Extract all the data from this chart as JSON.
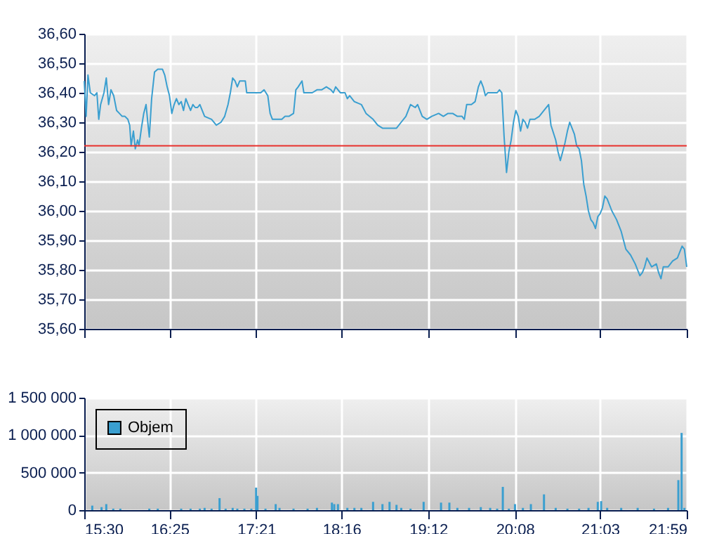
{
  "chart_data": [
    {
      "type": "line",
      "x": [
        15.5,
        15.52,
        15.54,
        15.565,
        15.611,
        15.636,
        15.656,
        15.676,
        15.712,
        15.737,
        15.762,
        15.787,
        15.817,
        15.848,
        15.878,
        15.908,
        15.938,
        15.969,
        15.989,
        16.004,
        16.029,
        16.049,
        16.074,
        16.089,
        16.115,
        16.14,
        16.165,
        16.19,
        16.2,
        16.225,
        16.256,
        16.291,
        16.316,
        16.341,
        16.366,
        16.392,
        16.417,
        16.442,
        16.467,
        16.492,
        16.518,
        16.543,
        16.568,
        16.593,
        16.618,
        16.644,
        16.669,
        16.694,
        16.719,
        16.744,
        16.795,
        16.87,
        16.921,
        16.971,
        17.011,
        17.047,
        17.072,
        17.097,
        17.122,
        17.147,
        17.173,
        17.233,
        17.248,
        17.299,
        17.349,
        17.399,
        17.435,
        17.475,
        17.5,
        17.525,
        17.576,
        17.626,
        17.661,
        17.702,
        17.752,
        17.777,
        17.802,
        17.843,
        17.863,
        17.903,
        17.953,
        18.004,
        18.054,
        18.105,
        18.155,
        18.18,
        18.205,
        18.256,
        18.306,
        18.331,
        18.356,
        18.406,
        18.482,
        18.532,
        18.608,
        18.658,
        18.709,
        18.759,
        18.809,
        18.86,
        18.91,
        18.961,
        19.011,
        19.061,
        19.087,
        19.137,
        19.187,
        19.238,
        19.313,
        19.364,
        19.414,
        19.464,
        19.515,
        19.565,
        19.59,
        19.615,
        19.666,
        19.706,
        19.741,
        19.767,
        19.792,
        19.817,
        19.842,
        19.892,
        19.943,
        19.968,
        19.993,
        20.018,
        20.044,
        20.069,
        20.094,
        20.119,
        20.144,
        20.17,
        20.195,
        20.22,
        20.245,
        20.27,
        20.296,
        20.346,
        20.396,
        20.447,
        20.497,
        20.522,
        20.573,
        20.598,
        20.623,
        20.648,
        20.673,
        20.699,
        20.724,
        20.749,
        20.774,
        20.799,
        20.825,
        20.85,
        20.875,
        20.9,
        20.925,
        20.951,
        20.976,
        21.001,
        21.026,
        21.051,
        21.076,
        21.102,
        21.127,
        21.177,
        21.228,
        21.278,
        21.328,
        21.379,
        21.429,
        21.454,
        21.479,
        21.505,
        21.53,
        21.555,
        21.605,
        21.656,
        21.681,
        21.706,
        21.731,
        21.782,
        21.832,
        21.883,
        21.933,
        21.958,
        21.983
      ],
      "series": [
        {
          "color": "#3a9fd0",
          "values": [
            36.44,
            36.32,
            36.46,
            36.4,
            36.39,
            36.4,
            36.31,
            36.36,
            36.4,
            36.45,
            36.36,
            36.41,
            36.39,
            36.34,
            36.33,
            36.32,
            36.32,
            36.31,
            36.29,
            36.22,
            36.27,
            36.21,
            36.24,
            36.22,
            36.28,
            36.33,
            36.36,
            36.28,
            36.25,
            36.38,
            36.47,
            36.48,
            36.48,
            36.48,
            36.46,
            36.42,
            36.39,
            36.33,
            36.36,
            36.38,
            36.36,
            36.37,
            36.34,
            36.38,
            36.36,
            36.34,
            36.36,
            36.35,
            36.35,
            36.36,
            36.32,
            36.31,
            36.29,
            36.3,
            36.32,
            36.36,
            36.4,
            36.45,
            36.44,
            36.42,
            36.44,
            36.44,
            36.4,
            36.4,
            36.4,
            36.4,
            36.41,
            36.39,
            36.33,
            36.31,
            36.31,
            36.31,
            36.32,
            36.32,
            36.33,
            36.41,
            36.42,
            36.44,
            36.4,
            36.4,
            36.4,
            36.41,
            36.41,
            36.42,
            36.41,
            36.4,
            36.42,
            36.4,
            36.4,
            36.38,
            36.39,
            36.37,
            36.36,
            36.33,
            36.31,
            36.29,
            36.28,
            36.28,
            36.28,
            36.28,
            36.3,
            36.32,
            36.36,
            36.35,
            36.36,
            36.32,
            36.31,
            36.32,
            36.33,
            36.32,
            36.33,
            36.33,
            36.32,
            36.32,
            36.31,
            36.36,
            36.36,
            36.37,
            36.42,
            36.44,
            36.42,
            36.39,
            36.4,
            36.4,
            36.4,
            36.41,
            36.4,
            36.25,
            36.13,
            36.2,
            36.24,
            36.3,
            36.34,
            36.32,
            36.27,
            36.31,
            36.3,
            36.28,
            36.31,
            36.31,
            36.32,
            36.34,
            36.36,
            36.29,
            36.24,
            36.2,
            36.17,
            36.2,
            36.23,
            36.27,
            36.3,
            36.28,
            36.26,
            36.22,
            36.21,
            36.17,
            36.09,
            36.05,
            36.0,
            35.97,
            35.96,
            35.94,
            35.98,
            35.99,
            36.01,
            36.05,
            36.04,
            36.0,
            35.97,
            35.93,
            35.87,
            35.85,
            35.82,
            35.8,
            35.78,
            35.79,
            35.81,
            35.84,
            35.81,
            35.82,
            35.79,
            35.77,
            35.81,
            35.81,
            35.83,
            35.84,
            35.88,
            35.87,
            35.81
          ]
        }
      ],
      "xlim": [
        15.5,
        21.983
      ],
      "xticks": [
        {
          "value": 15.5,
          "label": null
        },
        {
          "value": 16.417,
          "label": null
        },
        {
          "value": 17.35,
          "label": null
        },
        {
          "value": 18.267,
          "label": null
        },
        {
          "value": 19.2,
          "label": null
        },
        {
          "value": 20.133,
          "label": null
        },
        {
          "value": 21.05,
          "label": null
        },
        {
          "value": 21.983,
          "label": null
        }
      ],
      "ylim": [
        35.6,
        36.6
      ],
      "yticks": [
        {
          "value": 35.6,
          "label": "35,60"
        },
        {
          "value": 35.7,
          "label": "35,70"
        },
        {
          "value": 35.8,
          "label": "35,80"
        },
        {
          "value": 35.9,
          "label": "35,90"
        },
        {
          "value": 36.0,
          "label": "36,00"
        },
        {
          "value": 36.1,
          "label": "36,10"
        },
        {
          "value": 36.2,
          "label": "36,20"
        },
        {
          "value": 36.3,
          "label": "36,30"
        },
        {
          "value": 36.4,
          "label": "36,40"
        },
        {
          "value": 36.5,
          "label": "36,50"
        },
        {
          "value": 36.6,
          "label": "36,60"
        }
      ],
      "ref_lines": [
        {
          "axis": "y",
          "value": 36.22,
          "color": "#e8302c"
        }
      ],
      "grid": true,
      "tick_labels": "y"
    },
    {
      "type": "bar",
      "x": [
        15.586,
        15.686,
        15.737,
        15.812,
        15.888,
        16.2,
        16.291,
        16.543,
        16.644,
        16.744,
        16.795,
        16.87,
        16.956,
        17.021,
        17.097,
        17.147,
        17.223,
        17.298,
        17.349,
        17.364,
        17.45,
        17.56,
        17.601,
        17.752,
        17.903,
        18.004,
        18.165,
        18.19,
        18.23,
        18.331,
        18.407,
        18.482,
        18.608,
        18.709,
        18.785,
        18.86,
        18.911,
        19.011,
        19.152,
        19.339,
        19.429,
        19.515,
        19.641,
        19.767,
        19.868,
        19.943,
        20.004,
        20.069,
        20.135,
        20.22,
        20.306,
        20.447,
        20.573,
        20.699,
        20.825,
        20.926,
        21.026,
        21.062,
        21.127,
        21.278,
        21.455,
        21.631,
        21.782,
        21.893,
        21.928,
        21.958
      ],
      "series": [
        {
          "name": "Objem",
          "color": "#3a9fd0",
          "values": [
            60000,
            40000,
            80000,
            20000,
            20000,
            20000,
            20000,
            20000,
            20000,
            20000,
            30000,
            20000,
            160000,
            20000,
            30000,
            20000,
            20000,
            20000,
            300000,
            190000,
            20000,
            80000,
            30000,
            20000,
            20000,
            30000,
            100000,
            80000,
            80000,
            30000,
            30000,
            30000,
            110000,
            80000,
            110000,
            70000,
            30000,
            20000,
            110000,
            100000,
            100000,
            30000,
            30000,
            40000,
            30000,
            20000,
            310000,
            20000,
            80000,
            30000,
            80000,
            210000,
            30000,
            20000,
            20000,
            30000,
            110000,
            120000,
            30000,
            30000,
            30000,
            20000,
            30000,
            400000,
            1030000,
            30000
          ]
        }
      ],
      "xlim": [
        15.5,
        21.983
      ],
      "xticks": [
        {
          "value": 15.5,
          "label": "15:30"
        },
        {
          "value": 16.417,
          "label": "16:25"
        },
        {
          "value": 17.35,
          "label": "17:21"
        },
        {
          "value": 18.267,
          "label": "18:16"
        },
        {
          "value": 19.2,
          "label": "19:12"
        },
        {
          "value": 20.133,
          "label": "20:08"
        },
        {
          "value": 21.05,
          "label": "21:03"
        },
        {
          "value": 21.983,
          "label": "21:59"
        }
      ],
      "ylim": [
        0,
        1500000
      ],
      "yticks": [
        0,
        {
          "value": 500000,
          "label": "500 000"
        },
        {
          "value": 1000000,
          "label": "1 000 000"
        },
        {
          "value": 1500000,
          "label": "1 500 000"
        }
      ],
      "grid": true,
      "legend": "top left"
    }
  ]
}
